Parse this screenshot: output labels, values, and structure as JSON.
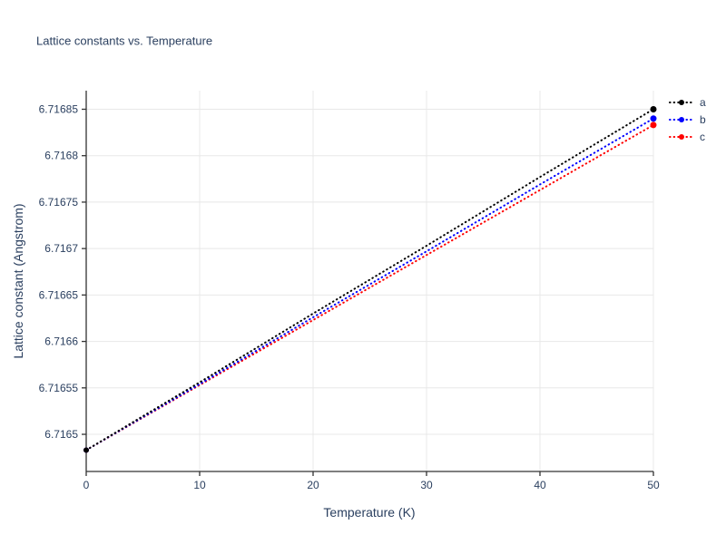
{
  "chart_data": {
    "type": "line",
    "title": "Lattice constants vs. Temperature",
    "xlabel": "Temperature (K)",
    "ylabel": "Lattice constant (Angstrom)",
    "xlim": [
      0,
      50
    ],
    "ylim": [
      6.71646,
      6.71687
    ],
    "x_ticks": [
      0,
      10,
      20,
      30,
      40,
      50
    ],
    "x_tick_labels": [
      "0",
      "10",
      "20",
      "30",
      "40",
      "50"
    ],
    "y_ticks": [
      6.7165,
      6.71655,
      6.7166,
      6.71665,
      6.7167,
      6.71675,
      6.7168,
      6.71685
    ],
    "y_tick_labels": [
      "6.7165",
      "6.71655",
      "6.7166",
      "6.71665",
      "6.7167",
      "6.71675",
      "6.7168",
      "6.71685"
    ],
    "grid": true,
    "legend_position": "top-right",
    "line_style": "dotted",
    "series": [
      {
        "name": "a",
        "color": "#000000",
        "x": [
          0,
          10,
          20,
          30,
          40,
          50
        ],
        "y": [
          6.716483,
          6.716556,
          6.71663,
          6.716703,
          6.716777,
          6.71685
        ]
      },
      {
        "name": "b",
        "color": "#0000ff",
        "x": [
          0,
          10,
          20,
          30,
          40,
          50
        ],
        "y": [
          6.716483,
          6.716554,
          6.716626,
          6.716697,
          6.716769,
          6.71684
        ]
      },
      {
        "name": "c",
        "color": "#ff0000",
        "x": [
          0,
          10,
          20,
          30,
          40,
          50
        ],
        "y": [
          6.716483,
          6.716553,
          6.716623,
          6.716693,
          6.716763,
          6.716833
        ]
      }
    ],
    "colors": {
      "title": "#2a3f5f",
      "tick_label": "#2a3f5f",
      "axis": "#333333",
      "grid": "#e8e8e8",
      "background": "#ffffff"
    }
  }
}
